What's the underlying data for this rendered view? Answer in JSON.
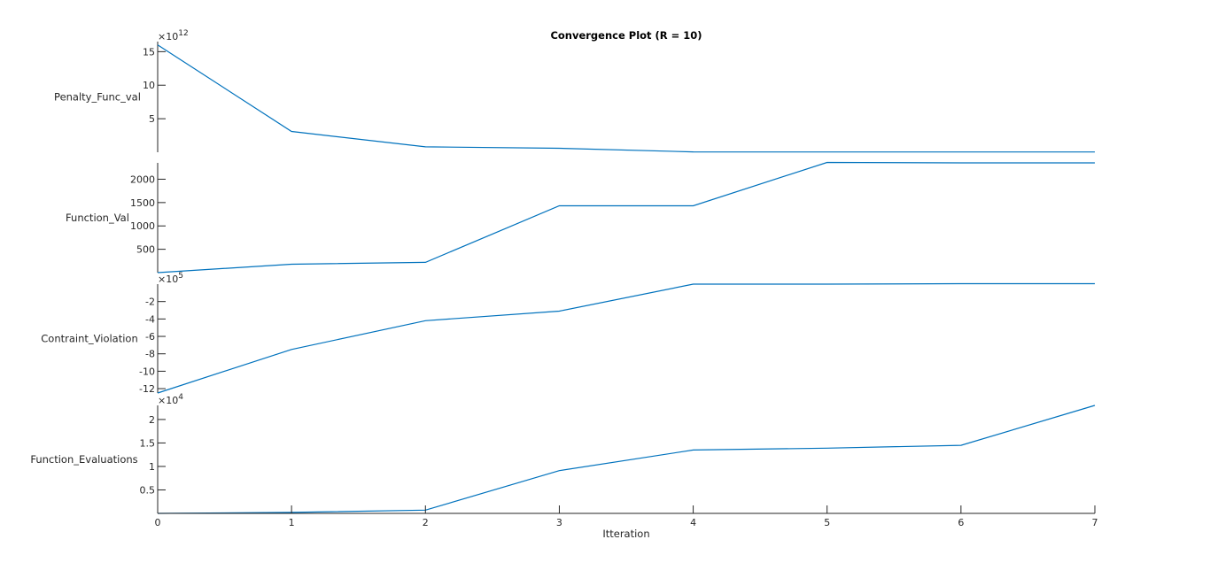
{
  "chart_data": {
    "type": "line",
    "title": "Convergence Plot (R = 10)",
    "xlabel": "Itteration",
    "x": [
      0,
      1,
      2,
      3,
      4,
      5,
      6,
      7
    ],
    "xlim": [
      0,
      7
    ],
    "x_ticks": [
      "0",
      "1",
      "2",
      "3",
      "4",
      "5",
      "6",
      "7"
    ],
    "panels": [
      {
        "ylabel": "Penalty_Func_val",
        "exponent_base": "×10",
        "exponent_power": "12",
        "multiplier": 1000000000000.0,
        "values": [
          16.0,
          3.1,
          0.8,
          0.6,
          0.05,
          0.04,
          0.04,
          0.04
        ],
        "ylim": [
          0,
          16.5
        ],
        "yticks": [
          5,
          10,
          15
        ],
        "ytick_labels": [
          "5",
          "10",
          "15"
        ]
      },
      {
        "ylabel": "Function_Val",
        "exponent_base": "",
        "exponent_power": "",
        "multiplier": 1,
        "values": [
          0,
          180,
          220,
          1430,
          1430,
          2360,
          2350,
          2350
        ],
        "ylim": [
          0,
          2350
        ],
        "yticks": [
          500,
          1000,
          1500,
          2000
        ],
        "ytick_labels": [
          "500",
          "1000",
          "1500",
          "2000"
        ]
      },
      {
        "ylabel": "Contraint_Violation",
        "exponent_base": "×10",
        "exponent_power": "5",
        "multiplier": 100000,
        "values": [
          -12.5,
          -7.5,
          -4.2,
          -3.1,
          0.0,
          0.0,
          0.05,
          0.05
        ],
        "ylim": [
          -12.5,
          0.0
        ],
        "yticks": [
          -12,
          -10,
          -8,
          -6,
          -4,
          -2
        ],
        "ytick_labels": [
          "-12",
          "-10",
          "-8",
          "-6",
          "-4",
          "-2"
        ]
      },
      {
        "ylabel": "Function_Evaluations",
        "exponent_base": "×10",
        "exponent_power": "4",
        "multiplier": 10000,
        "values": [
          0.0,
          0.02,
          0.07,
          0.91,
          1.35,
          1.39,
          1.45,
          2.3
        ],
        "ylim": [
          0,
          2.3
        ],
        "yticks": [
          0.5,
          1.0,
          1.5,
          2.0
        ],
        "ytick_labels": [
          "0.5",
          "1",
          "1.5",
          "2"
        ]
      }
    ],
    "grid": false,
    "legend": "none",
    "line_color": "#0072bd"
  }
}
